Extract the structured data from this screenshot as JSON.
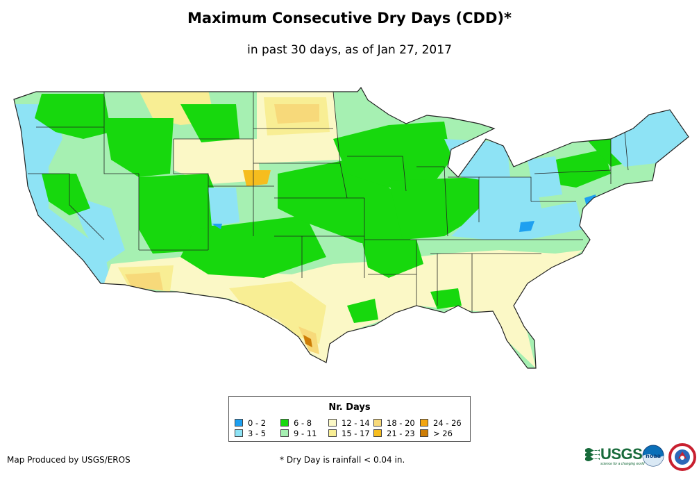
{
  "title": "Maximum Consecutive Dry Days (CDD)*",
  "subtitle": "in past 30 days, as of Jan 27, 2017",
  "legend": {
    "title": "Nr. Days",
    "items": [
      {
        "label": "0 - 2",
        "color": "#1ea0f0"
      },
      {
        "label": "3 - 5",
        "color": "#8ee3f5"
      },
      {
        "label": "6 - 8",
        "color": "#17d80d"
      },
      {
        "label": "9 - 11",
        "color": "#a6f0b2"
      },
      {
        "label": "12 - 14",
        "color": "#fbf8c6"
      },
      {
        "label": "15 - 17",
        "color": "#f8ee94"
      },
      {
        "label": "18 - 20",
        "color": "#f7d97a"
      },
      {
        "label": "21 - 23",
        "color": "#f6bd1e"
      },
      {
        "label": "24 - 26",
        "color": "#f2a511"
      },
      {
        "label": "> 26",
        "color": "#cd7d06"
      }
    ]
  },
  "footer": {
    "credit": "Map Produced by USGS/EROS",
    "footnote": "* Dry Day is rainfall < 0.04 in."
  },
  "logos": {
    "usgs": "USGS",
    "usgs_tagline": "science for a changing world",
    "noaa": "noaa"
  }
}
